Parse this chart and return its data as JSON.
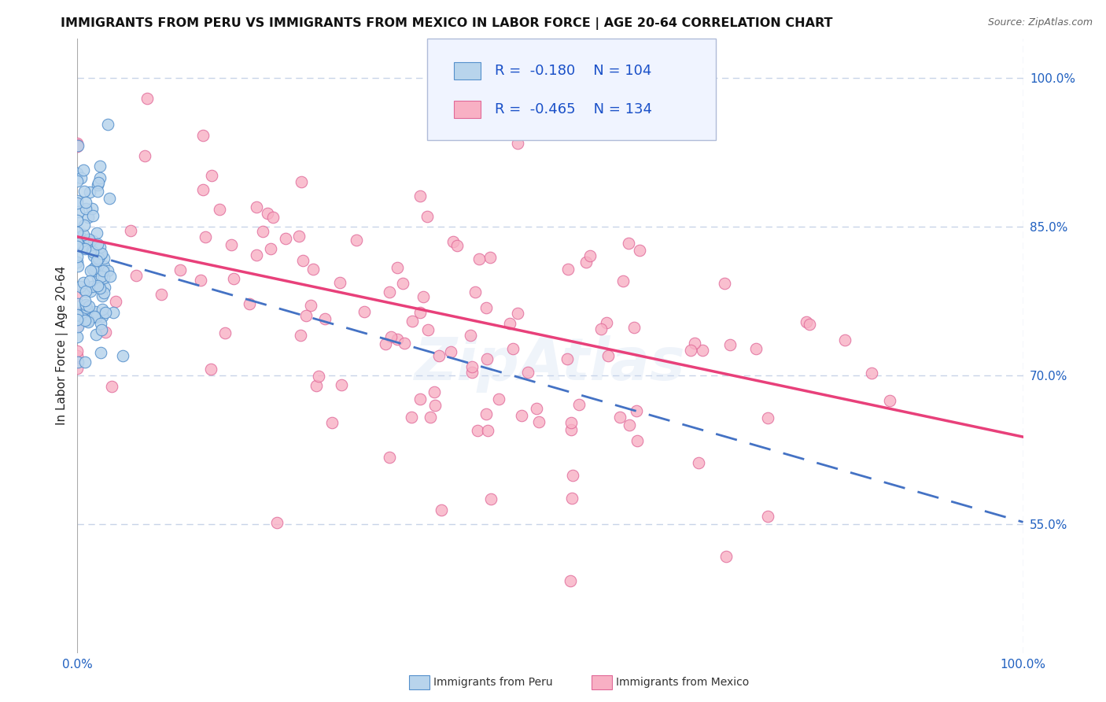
{
  "title": "IMMIGRANTS FROM PERU VS IMMIGRANTS FROM MEXICO IN LABOR FORCE | AGE 20-64 CORRELATION CHART",
  "source": "Source: ZipAtlas.com",
  "ylabel": "In Labor Force | Age 20-64",
  "yticks_labels": [
    "55.0%",
    "70.0%",
    "85.0%",
    "100.0%"
  ],
  "ytick_vals": [
    0.55,
    0.7,
    0.85,
    1.0
  ],
  "xtick_labels": [
    "0.0%",
    "100.0%"
  ],
  "xtick_vals": [
    0.0,
    1.0
  ],
  "xlim": [
    0.0,
    1.0
  ],
  "ylim": [
    0.42,
    1.04
  ],
  "peru_R": -0.18,
  "peru_N": 104,
  "mexico_R": -0.465,
  "mexico_N": 134,
  "peru_scatter_fill": "#b8d4ec",
  "peru_scatter_edge": "#5590cc",
  "mexico_scatter_fill": "#f8b0c4",
  "mexico_scatter_edge": "#e06898",
  "peru_line_color": "#4472c4",
  "mexico_line_color": "#e8407a",
  "background_color": "#ffffff",
  "grid_color": "#c8d4e8",
  "title_fontsize": 11.5,
  "source_fontsize": 9,
  "axis_label_fontsize": 11,
  "tick_fontsize": 11,
  "legend_fontsize": 13,
  "bottom_legend_labels": [
    "Immigrants from Peru",
    "Immigrants from Mexico"
  ],
  "legend_text_color": "#1a50c8",
  "axis_label_color": "#222222",
  "tick_color": "#2060c0",
  "peru_line_x0": 0.0,
  "peru_line_x1": 1.0,
  "peru_line_y0": 0.826,
  "peru_line_y1": 0.552,
  "mexico_line_x0": 0.0,
  "mexico_line_x1": 1.0,
  "mexico_line_y0": 0.84,
  "mexico_line_y1": 0.638
}
